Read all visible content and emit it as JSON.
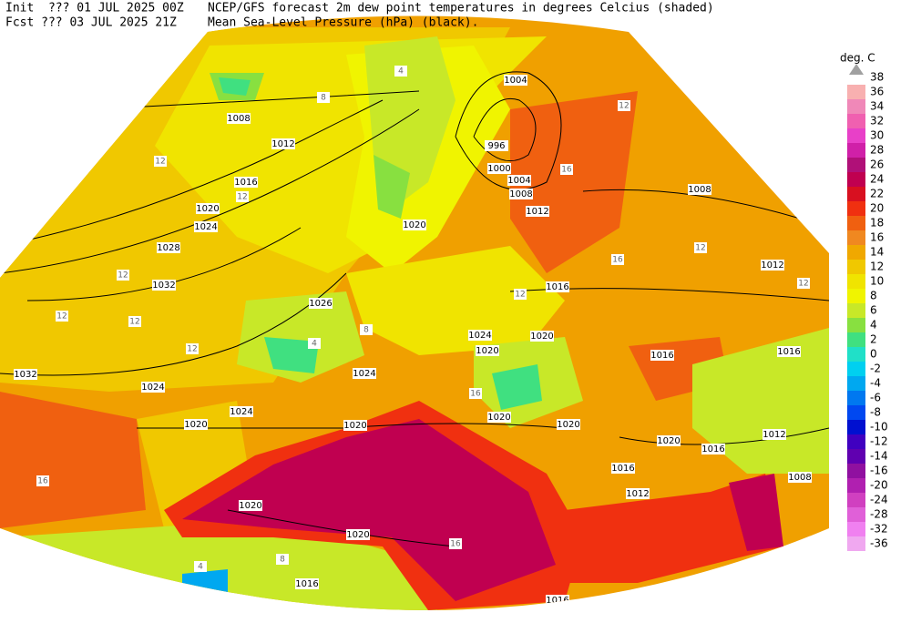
{
  "header": {
    "init": "Init  ??? 01 JUL 2025 00Z",
    "fcst": "Fcst ??? 03 JUL 2025 21Z",
    "title": "NCEP/GFS forecast 2m dew point temperatures in degrees Celcius (shaded)",
    "subtitle": "Mean Sea-Level Pressure (hPa) (black)."
  },
  "colorbar": {
    "title": "deg. C",
    "top_label": 38,
    "levels": [
      36,
      34,
      32,
      30,
      28,
      26,
      24,
      22,
      20,
      18,
      16,
      14,
      12,
      10,
      8,
      6,
      4,
      2,
      0,
      -2,
      -4,
      -6,
      -8,
      -10,
      -12,
      -14,
      -16,
      -20,
      -24,
      -28,
      -32,
      -36
    ],
    "colors": [
      "#f8b0b0",
      "#f088b8",
      "#f060b0",
      "#e840c8",
      "#d020a8",
      "#b01078",
      "#c00050",
      "#d81020",
      "#f03010",
      "#f06010",
      "#f08820",
      "#f0a800",
      "#f0c800",
      "#f0e400",
      "#f0f400",
      "#c8e828",
      "#88e040",
      "#40e080",
      "#20e0c8",
      "#00d0f0",
      "#00a8f0",
      "#0078f0",
      "#0048f0",
      "#0010d0",
      "#4000c0",
      "#6000b0",
      "#9010a0",
      "#b020b0",
      "#d040c0",
      "#e060d8",
      "#f080f0",
      "#f0a8f0"
    ]
  },
  "isobar_labels": [
    1004,
    996,
    1000,
    1004,
    1008,
    1012,
    1008,
    1012,
    1016,
    1020,
    1024,
    1028,
    1032,
    1032,
    1024,
    1020,
    1024,
    1020,
    1026,
    1016,
    1024,
    1020,
    1020,
    1024,
    1020,
    1020,
    1020,
    1020,
    1016,
    1012,
    1008,
    1012,
    1008,
    1016,
    1016,
    1020,
    1020,
    1016,
    1016,
    1012,
    1016
  ],
  "temp_labels": [
    4,
    8,
    12,
    12,
    12,
    12,
    12,
    12,
    12,
    16,
    4,
    8,
    12,
    16,
    16,
    12,
    12,
    16,
    8,
    4,
    16
  ]
}
